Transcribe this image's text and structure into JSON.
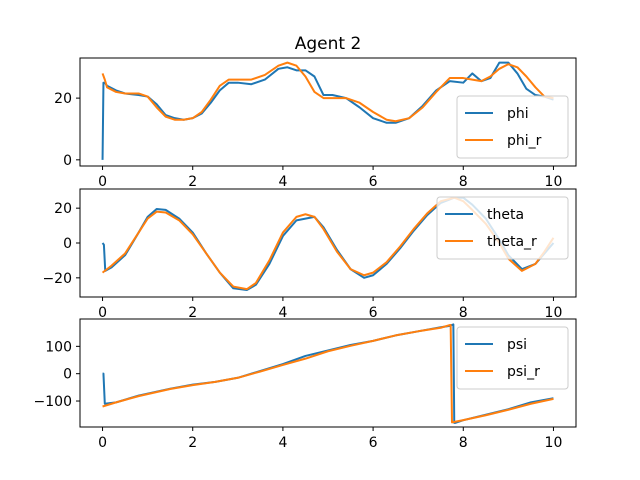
{
  "title": "Agent 2",
  "colors": {
    "series_1": "#1f77b4",
    "series_2": "#ff7f0e"
  },
  "chart_data": [
    {
      "type": "line",
      "title": "Agent 2",
      "xlabel": "",
      "ylabel": "",
      "xlim": [
        -0.5,
        10.5
      ],
      "ylim": [
        -2,
        33
      ],
      "x_ticks": [
        0,
        2,
        4,
        6,
        8,
        10
      ],
      "y_ticks": [
        0,
        20
      ],
      "legend_position": "center-right",
      "series": [
        {
          "name": "phi",
          "x": [
            0,
            0.02,
            0.05,
            0.1,
            0.3,
            0.5,
            0.8,
            1.0,
            1.2,
            1.4,
            1.6,
            1.8,
            2.0,
            2.2,
            2.4,
            2.6,
            2.8,
            3.0,
            3.3,
            3.6,
            3.9,
            4.1,
            4.3,
            4.5,
            4.7,
            4.9,
            5.1,
            5.4,
            5.7,
            6.0,
            6.3,
            6.5,
            6.8,
            7.1,
            7.4,
            7.7,
            8.0,
            8.2,
            8.4,
            8.6,
            8.8,
            9.0,
            9.2,
            9.4,
            9.6,
            9.8,
            10.0
          ],
          "y": [
            0,
            25,
            25,
            24,
            22.5,
            21.5,
            21,
            20.5,
            18,
            14.5,
            13.5,
            13,
            13.5,
            15,
            18.5,
            22.5,
            25,
            25,
            24.5,
            26,
            29.5,
            30,
            29,
            29,
            27,
            21,
            21,
            20,
            17,
            13.5,
            12,
            12,
            13.5,
            17.5,
            22.5,
            25.5,
            25,
            28,
            25.5,
            26.5,
            31.5,
            31.5,
            28,
            23,
            21,
            20.5,
            19.5
          ]
        },
        {
          "name": "phi_r",
          "x": [
            0,
            0.05,
            0.1,
            0.3,
            0.5,
            0.8,
            1.0,
            1.2,
            1.4,
            1.6,
            1.8,
            2.0,
            2.2,
            2.4,
            2.6,
            2.8,
            3.0,
            3.3,
            3.6,
            3.9,
            4.1,
            4.3,
            4.5,
            4.7,
            4.9,
            5.1,
            5.4,
            5.7,
            6.0,
            6.3,
            6.5,
            6.8,
            7.1,
            7.4,
            7.7,
            8.0,
            8.2,
            8.4,
            8.6,
            8.8,
            9.0,
            9.2,
            9.4,
            9.6,
            9.8,
            10.0
          ],
          "y": [
            28,
            26,
            23.5,
            22,
            21.5,
            21.5,
            20.5,
            17,
            14,
            13,
            13,
            13.5,
            15.5,
            19.5,
            24,
            26,
            26,
            26,
            27.5,
            30.5,
            31.5,
            30.5,
            27,
            22,
            20,
            20,
            20,
            18.5,
            15.5,
            13,
            12.5,
            13.5,
            17,
            22,
            26.5,
            26.5,
            26,
            25.5,
            27,
            29.5,
            31,
            30,
            27,
            23.5,
            20.5,
            20
          ]
        }
      ]
    },
    {
      "type": "line",
      "xlabel": "",
      "ylabel": "",
      "xlim": [
        -0.5,
        10.5
      ],
      "ylim": [
        -31,
        31
      ],
      "x_ticks": [
        0,
        2,
        4,
        6,
        8,
        10
      ],
      "y_ticks": [
        -20,
        0,
        20
      ],
      "legend_position": "upper right",
      "series": [
        {
          "name": "theta",
          "x": [
            0,
            0.03,
            0.06,
            0.2,
            0.5,
            0.8,
            1.0,
            1.2,
            1.4,
            1.7,
            2.0,
            2.3,
            2.6,
            2.9,
            3.2,
            3.4,
            3.7,
            4.0,
            4.3,
            4.5,
            4.7,
            4.9,
            5.2,
            5.5,
            5.8,
            6.0,
            6.3,
            6.6,
            6.9,
            7.2,
            7.5,
            7.8,
            8.0,
            8.2,
            8.5,
            8.8,
            9.0,
            9.3,
            9.6,
            9.8,
            10.0
          ],
          "y": [
            0,
            -1,
            -16,
            -14,
            -7,
            6,
            15,
            19.5,
            19,
            14,
            6,
            -6,
            -17,
            -26,
            -27,
            -24,
            -12,
            4,
            13,
            14,
            15,
            9,
            -4,
            -15,
            -20,
            -18.5,
            -12,
            -3,
            7,
            16,
            23,
            26,
            26,
            22,
            14,
            2,
            -7,
            -15,
            -12,
            -6,
            0
          ]
        },
        {
          "name": "theta_r",
          "x": [
            0,
            0.05,
            0.2,
            0.5,
            0.8,
            1.0,
            1.2,
            1.4,
            1.7,
            2.0,
            2.3,
            2.6,
            2.9,
            3.2,
            3.4,
            3.7,
            4.0,
            4.3,
            4.5,
            4.7,
            4.9,
            5.2,
            5.5,
            5.8,
            6.0,
            6.3,
            6.6,
            6.9,
            7.2,
            7.5,
            7.8,
            8.0,
            8.2,
            8.5,
            8.8,
            9.0,
            9.3,
            9.6,
            9.8,
            10.0
          ],
          "y": [
            -17,
            -16,
            -13,
            -6,
            6,
            14,
            18,
            17.5,
            13,
            5,
            -6,
            -17,
            -25,
            -26.5,
            -23,
            -10,
            6,
            15,
            16.5,
            15,
            8,
            -5,
            -15,
            -18.5,
            -17,
            -11,
            -2,
            8,
            17,
            24,
            26,
            24,
            19,
            11,
            0,
            -9,
            -16,
            -12,
            -5,
            3
          ]
        }
      ]
    },
    {
      "type": "line",
      "xlabel": "",
      "ylabel": "",
      "xlim": [
        -0.5,
        10.5
      ],
      "ylim": [
        -195,
        200
      ],
      "x_ticks": [
        0,
        2,
        4,
        6,
        8,
        10
      ],
      "y_ticks": [
        -100,
        0,
        100
      ],
      "legend_position": "upper right",
      "series": [
        {
          "name": "psi",
          "x": [
            0,
            0.02,
            0.05,
            0.3,
            0.8,
            1.5,
            2.0,
            2.5,
            3.0,
            3.5,
            4.0,
            4.5,
            5.0,
            5.5,
            6.0,
            6.5,
            7.0,
            7.5,
            7.7,
            7.78,
            7.8,
            7.82,
            8.0,
            8.5,
            9.0,
            9.5,
            10.0
          ],
          "y": [
            0,
            0,
            -110,
            -105,
            -80,
            -55,
            -40,
            -30,
            -15,
            10,
            35,
            65,
            85,
            105,
            120,
            140,
            155,
            170,
            175,
            180,
            -180,
            -180,
            -170,
            -150,
            -130,
            -105,
            -90
          ]
        },
        {
          "name": "psi_r",
          "x": [
            0,
            0.3,
            0.8,
            1.5,
            2.0,
            2.5,
            3.0,
            3.5,
            4.0,
            4.5,
            5.0,
            5.5,
            6.0,
            6.5,
            7.0,
            7.5,
            7.7,
            7.72,
            7.75,
            8.0,
            8.5,
            9.0,
            9.5,
            10.0
          ],
          "y": [
            -120,
            -105,
            -82,
            -56,
            -42,
            -30,
            -15,
            8,
            32,
            55,
            82,
            102,
            120,
            140,
            155,
            168,
            178,
            178,
            -178,
            -170,
            -152,
            -132,
            -110,
            -92
          ]
        }
      ]
    }
  ]
}
